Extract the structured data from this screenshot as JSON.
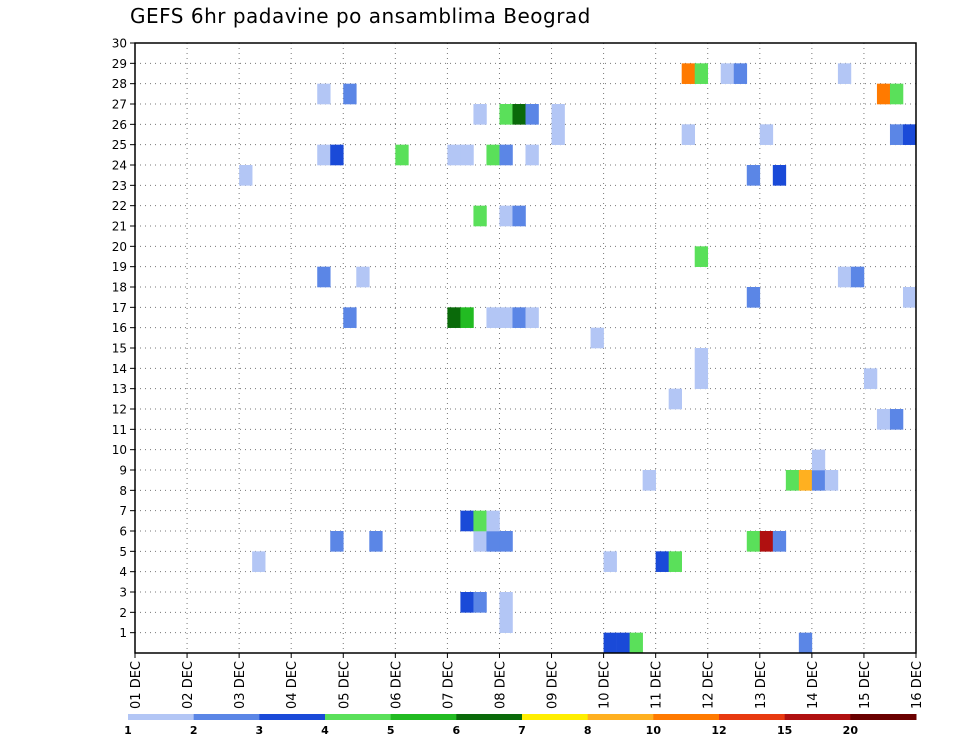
{
  "chart_data": {
    "type": "heatmap",
    "title": "GEFS 6hr padavine po ansamblima Beograd",
    "xlabel": "",
    "ylabel": "",
    "x_ticks": [
      "01 DEC",
      "02 DEC",
      "03 DEC",
      "04 DEC",
      "05 DEC",
      "06 DEC",
      "07 DEC",
      "08 DEC",
      "09 DEC",
      "10 DEC",
      "11 DEC",
      "12 DEC",
      "13 DEC",
      "14 DEC",
      "15 DEC",
      "16 DEC"
    ],
    "y_ticks": [
      1,
      2,
      3,
      4,
      5,
      6,
      7,
      8,
      9,
      10,
      11,
      12,
      13,
      14,
      15,
      16,
      17,
      18,
      19,
      20,
      21,
      22,
      23,
      24,
      25,
      26,
      27,
      28,
      29,
      30
    ],
    "x_range_steps": [
      0,
      60
    ],
    "y_range": [
      0,
      30
    ],
    "steps_per_day": 4,
    "grid": true,
    "color_scale": {
      "labels": [
        "1",
        "2",
        "3",
        "4",
        "5",
        "6",
        "7",
        "8",
        "10",
        "12",
        "15",
        "20"
      ],
      "colors": [
        "#b3c6f5",
        "#5b86e6",
        "#1a4ad8",
        "#5ae05a",
        "#22bb22",
        "#0a6a0a",
        "#ffee00",
        "#ffb020",
        "#ff7a00",
        "#e83a10",
        "#b01010",
        "#6a0000"
      ]
    },
    "cells": [
      {
        "y": 0,
        "t": 36,
        "c": 2
      },
      {
        "y": 0,
        "t": 37,
        "c": 2
      },
      {
        "y": 0,
        "t": 38,
        "c": 3
      },
      {
        "y": 0,
        "t": 51,
        "c": 1
      },
      {
        "y": 1,
        "t": 28,
        "c": 0
      },
      {
        "y": 2,
        "t": 25,
        "c": 2
      },
      {
        "y": 2,
        "t": 26,
        "c": 1
      },
      {
        "y": 2,
        "t": 28,
        "c": 0
      },
      {
        "y": 4,
        "t": 9,
        "c": 0
      },
      {
        "y": 4,
        "t": 36,
        "c": 0
      },
      {
        "y": 4,
        "t": 40,
        "c": 2
      },
      {
        "y": 4,
        "t": 41,
        "c": 3
      },
      {
        "y": 5,
        "t": 15,
        "c": 1
      },
      {
        "y": 5,
        "t": 18,
        "c": 1
      },
      {
        "y": 5,
        "t": 26,
        "c": 0
      },
      {
        "y": 5,
        "t": 27,
        "c": 1
      },
      {
        "y": 5,
        "t": 28,
        "c": 1
      },
      {
        "y": 5,
        "t": 47,
        "c": 3
      },
      {
        "y": 5,
        "t": 48,
        "c": 10
      },
      {
        "y": 5,
        "t": 49,
        "c": 1
      },
      {
        "y": 6,
        "t": 25,
        "c": 2
      },
      {
        "y": 6,
        "t": 26,
        "c": 3
      },
      {
        "y": 6,
        "t": 27,
        "c": 0
      },
      {
        "y": 8,
        "t": 39,
        "c": 0
      },
      {
        "y": 8,
        "t": 50,
        "c": 3
      },
      {
        "y": 8,
        "t": 51,
        "c": 7
      },
      {
        "y": 8,
        "t": 52,
        "c": 1
      },
      {
        "y": 8,
        "t": 53,
        "c": 0
      },
      {
        "y": 9,
        "t": 52,
        "c": 0
      },
      {
        "y": 11,
        "t": 57,
        "c": 0
      },
      {
        "y": 11,
        "t": 58,
        "c": 1
      },
      {
        "y": 12,
        "t": 41,
        "c": 0
      },
      {
        "y": 13,
        "t": 43,
        "c": 0
      },
      {
        "y": 13,
        "t": 56,
        "c": 0
      },
      {
        "y": 14,
        "t": 43,
        "c": 0
      },
      {
        "y": 15,
        "t": 35,
        "c": 0
      },
      {
        "y": 16,
        "t": 16,
        "c": 1
      },
      {
        "y": 16,
        "t": 24,
        "c": 5
      },
      {
        "y": 16,
        "t": 25,
        "c": 4
      },
      {
        "y": 16,
        "t": 27,
        "c": 0
      },
      {
        "y": 16,
        "t": 28,
        "c": 0
      },
      {
        "y": 16,
        "t": 29,
        "c": 1
      },
      {
        "y": 16,
        "t": 30,
        "c": 0
      },
      {
        "y": 17,
        "t": 47,
        "c": 1
      },
      {
        "y": 17,
        "t": 59,
        "c": 0
      },
      {
        "y": 18,
        "t": 14,
        "c": 1
      },
      {
        "y": 18,
        "t": 17,
        "c": 0
      },
      {
        "y": 18,
        "t": 54,
        "c": 0
      },
      {
        "y": 18,
        "t": 55,
        "c": 1
      },
      {
        "y": 19,
        "t": 43,
        "c": 3
      },
      {
        "y": 21,
        "t": 26,
        "c": 3
      },
      {
        "y": 21,
        "t": 28,
        "c": 0
      },
      {
        "y": 21,
        "t": 29,
        "c": 1
      },
      {
        "y": 23,
        "t": 8,
        "c": 0
      },
      {
        "y": 23,
        "t": 47,
        "c": 1
      },
      {
        "y": 23,
        "t": 49,
        "c": 2
      },
      {
        "y": 24,
        "t": 14,
        "c": 0
      },
      {
        "y": 24,
        "t": 15,
        "c": 2
      },
      {
        "y": 24,
        "t": 20,
        "c": 3
      },
      {
        "y": 24,
        "t": 24,
        "c": 0
      },
      {
        "y": 24,
        "t": 25,
        "c": 0
      },
      {
        "y": 24,
        "t": 27,
        "c": 3
      },
      {
        "y": 24,
        "t": 28,
        "c": 1
      },
      {
        "y": 24,
        "t": 30,
        "c": 0
      },
      {
        "y": 25,
        "t": 32,
        "c": 0
      },
      {
        "y": 25,
        "t": 42,
        "c": 0
      },
      {
        "y": 25,
        "t": 48,
        "c": 0
      },
      {
        "y": 25,
        "t": 58,
        "c": 1
      },
      {
        "y": 25,
        "t": 59,
        "c": 2
      },
      {
        "y": 26,
        "t": 26,
        "c": 0
      },
      {
        "y": 26,
        "t": 28,
        "c": 3
      },
      {
        "y": 26,
        "t": 29,
        "c": 5
      },
      {
        "y": 26,
        "t": 30,
        "c": 1
      },
      {
        "y": 26,
        "t": 32,
        "c": 0
      },
      {
        "y": 27,
        "t": 14,
        "c": 0
      },
      {
        "y": 27,
        "t": 16,
        "c": 1
      },
      {
        "y": 27,
        "t": 57,
        "c": 8
      },
      {
        "y": 27,
        "t": 58,
        "c": 3
      },
      {
        "y": 28,
        "t": 42,
        "c": 8
      },
      {
        "y": 28,
        "t": 43,
        "c": 3
      },
      {
        "y": 28,
        "t": 45,
        "c": 0
      },
      {
        "y": 28,
        "t": 46,
        "c": 1
      },
      {
        "y": 28,
        "t": 54,
        "c": 0
      }
    ]
  }
}
